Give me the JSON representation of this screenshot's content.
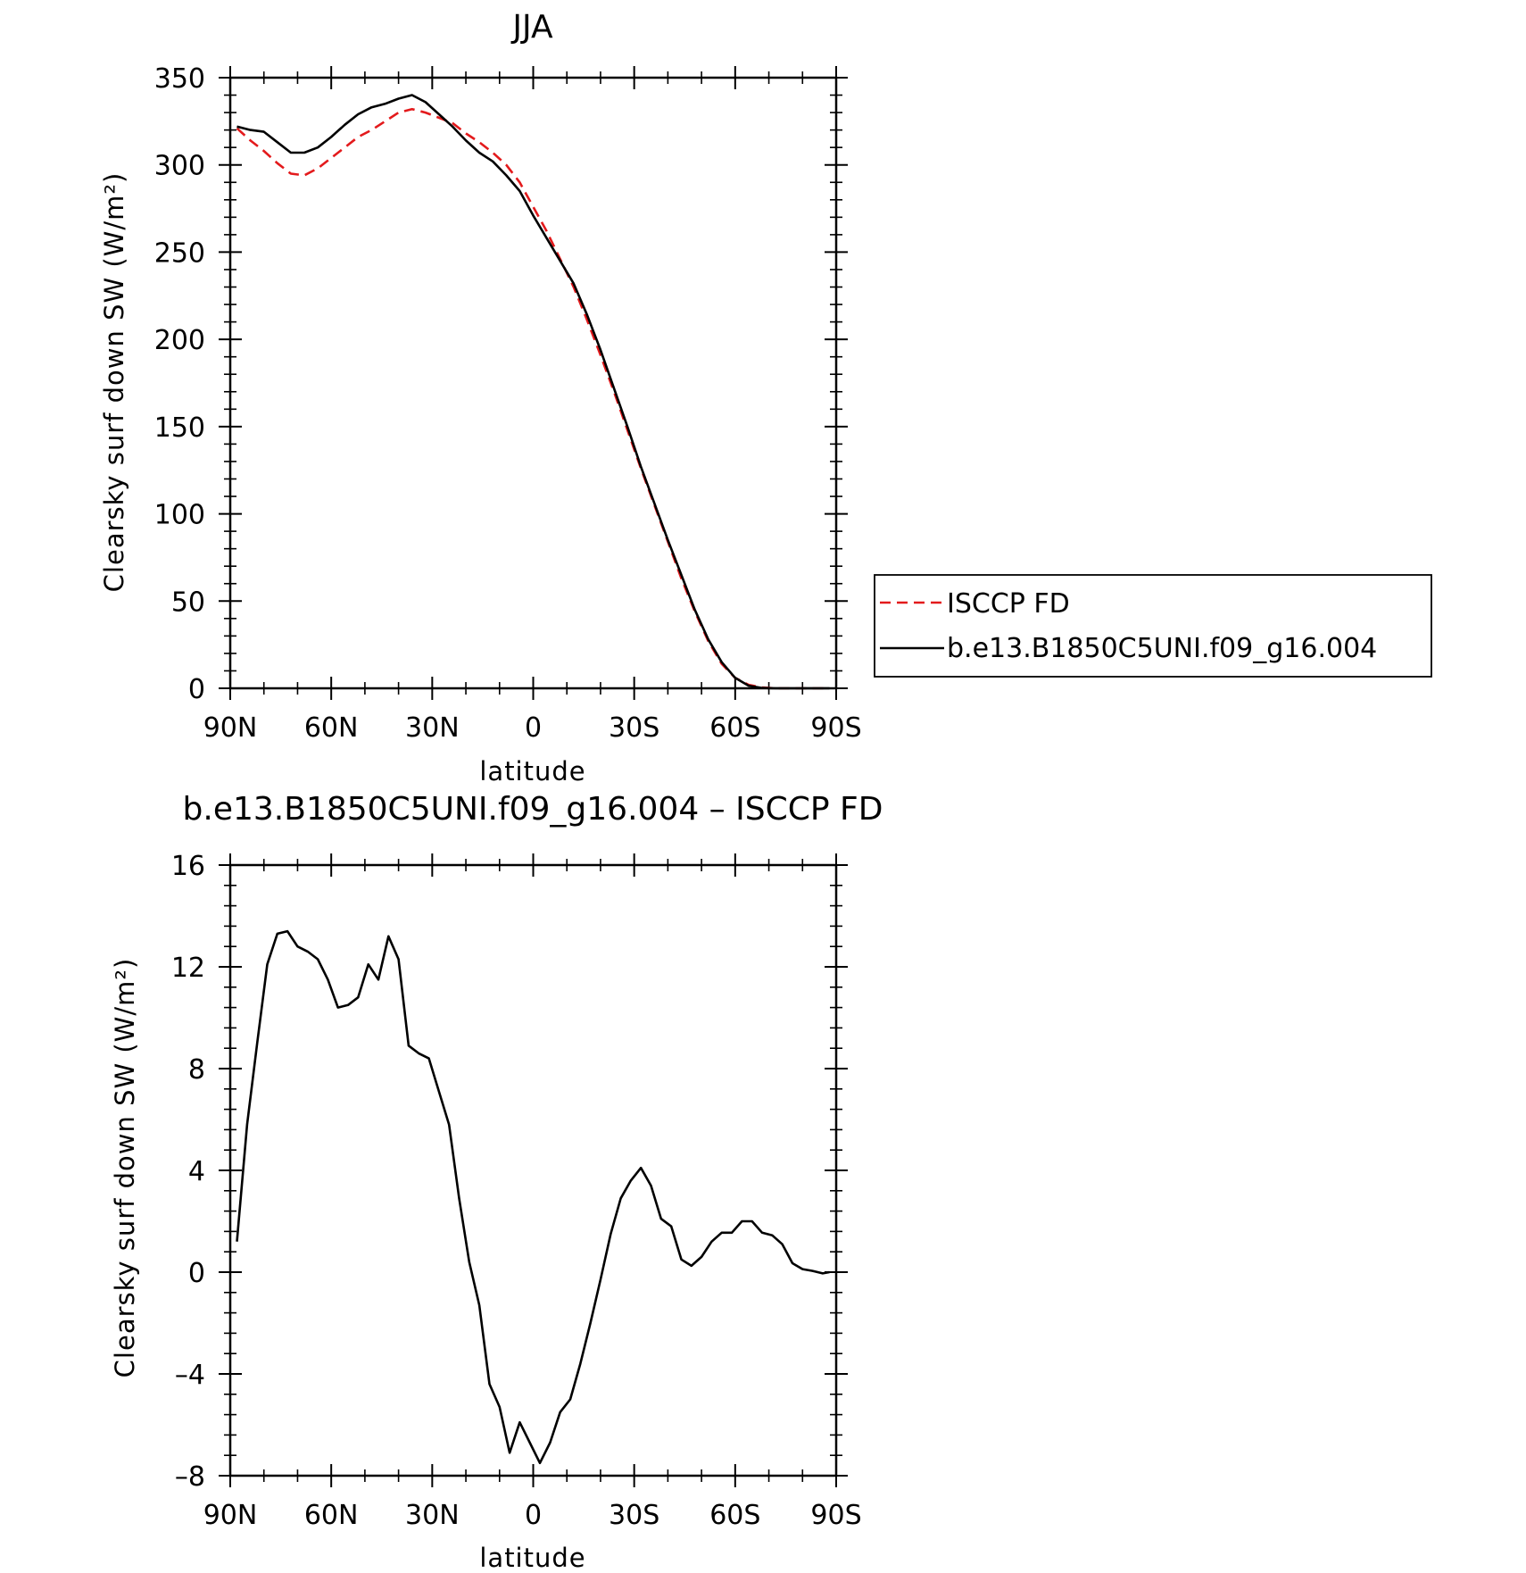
{
  "chart_data": [
    {
      "type": "line",
      "title": "JJA",
      "xlabel": "latitude",
      "ylabel": "Clearsky surf down SW (W/m²)",
      "xlim": [
        90,
        -90
      ],
      "ylim": [
        0,
        350
      ],
      "xticks": [
        90,
        60,
        30,
        0,
        -30,
        -60,
        -90
      ],
      "xtick_labels": [
        "90N",
        "60N",
        "30N",
        "0",
        "30S",
        "60S",
        "90S"
      ],
      "yticks": [
        0,
        50,
        100,
        150,
        200,
        250,
        300,
        350
      ],
      "ytick_labels": [
        "0",
        "50",
        "100",
        "150",
        "200",
        "250",
        "300",
        "350"
      ],
      "legend_position": "right, outside plot",
      "series": [
        {
          "name": "ISCCP FD",
          "color": "#e31a1c",
          "style": "dashed",
          "x": [
            88,
            84,
            80,
            76,
            72,
            68,
            64,
            60,
            56,
            52,
            48,
            44,
            40,
            36,
            32,
            28,
            24,
            20,
            16,
            12,
            8,
            4,
            0,
            -4,
            -8,
            -12,
            -16,
            -20,
            -24,
            -28,
            -32,
            -36,
            -40,
            -44,
            -48,
            -52,
            -56,
            -60,
            -64,
            -68,
            -72,
            -76,
            -80,
            -84,
            -88
          ],
          "y": [
            321,
            314,
            308,
            301,
            295,
            294,
            298,
            304,
            310,
            316,
            320,
            325,
            330,
            332,
            330,
            327,
            324,
            318,
            313,
            307,
            300,
            290,
            276,
            262,
            246,
            230,
            211,
            191,
            170,
            148,
            126,
            105,
            84,
            63,
            44,
            27,
            14,
            6,
            2,
            0.5,
            0,
            0,
            0,
            0,
            0
          ]
        },
        {
          "name": "b.e13.B1850C5UNI.f09_g16.004",
          "color": "#000000",
          "style": "solid",
          "x": [
            88,
            84,
            80,
            76,
            72,
            68,
            64,
            60,
            56,
            52,
            48,
            44,
            40,
            36,
            32,
            28,
            24,
            20,
            16,
            12,
            8,
            4,
            0,
            -4,
            -8,
            -12,
            -16,
            -20,
            -24,
            -28,
            -32,
            -36,
            -40,
            -44,
            -48,
            -52,
            -56,
            -60,
            -64,
            -68,
            -72,
            -76,
            -80,
            -84,
            -88
          ],
          "y": [
            322,
            320,
            319,
            313,
            307,
            307,
            310,
            316,
            323,
            329,
            333,
            335,
            338,
            340,
            336,
            329,
            322,
            314,
            307,
            302,
            294,
            285,
            271,
            258,
            245,
            232,
            214,
            194,
            172,
            150,
            127,
            106,
            85,
            65,
            45,
            28,
            15,
            6,
            1.5,
            0.2,
            0,
            0,
            0,
            0,
            0
          ]
        }
      ]
    },
    {
      "type": "line",
      "title": "b.e13.B1850C5UNI.f09_g16.004 – ISCCP FD",
      "xlabel": "latitude",
      "ylabel": "Clearsky surf down SW (W/m²)",
      "xlim": [
        90,
        -90
      ],
      "ylim": [
        -8,
        16
      ],
      "xticks": [
        90,
        60,
        30,
        0,
        -30,
        -60,
        -90
      ],
      "xtick_labels": [
        "90N",
        "60N",
        "30N",
        "0",
        "30S",
        "60S",
        "90S"
      ],
      "yticks": [
        -8,
        -4,
        0,
        4,
        8,
        12,
        16
      ],
      "ytick_labels": [
        "–8",
        "–4",
        "0",
        "4",
        "8",
        "12",
        "16"
      ],
      "series": [
        {
          "color": "#000000",
          "style": "solid",
          "x": [
            88,
            85,
            82,
            79,
            76,
            73,
            70,
            67,
            64,
            61,
            58,
            55,
            52,
            49,
            46,
            43,
            40,
            37,
            34,
            31,
            28,
            25,
            22,
            19,
            16,
            13,
            10,
            7,
            4,
            1,
            -2,
            -5,
            -8,
            -11,
            -14,
            -17,
            -20,
            -23,
            -26,
            -29,
            -32,
            -35,
            -38,
            -41,
            -44,
            -47,
            -50,
            -53,
            -56,
            -59,
            -62,
            -65,
            -68,
            -71,
            -74,
            -77,
            -80,
            -83,
            -86,
            -88
          ],
          "y": [
            1.2,
            5.8,
            9.0,
            12.1,
            13.3,
            13.4,
            12.8,
            12.6,
            12.3,
            11.5,
            10.4,
            10.5,
            10.8,
            12.1,
            11.5,
            13.2,
            12.3,
            8.9,
            8.6,
            8.4,
            7.1,
            5.8,
            2.9,
            0.4,
            -1.3,
            -4.4,
            -5.3,
            -7.1,
            -5.9,
            -6.7,
            -7.5,
            -6.7,
            -5.5,
            -5.0,
            -3.6,
            -2.0,
            -0.3,
            1.5,
            2.9,
            3.6,
            4.1,
            3.4,
            2.1,
            1.8,
            0.5,
            0.25,
            0.6,
            1.2,
            1.55,
            1.55,
            2.0,
            2.0,
            1.55,
            1.45,
            1.1,
            0.35,
            0.12,
            0.05,
            -0.05,
            0.0
          ]
        }
      ]
    }
  ]
}
